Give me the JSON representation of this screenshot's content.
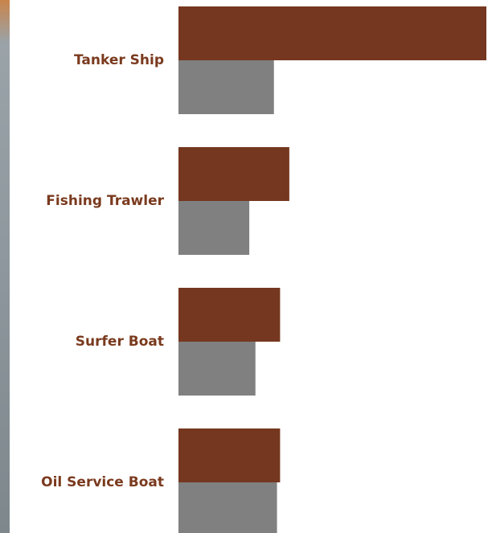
{
  "chart_data": {
    "type": "bar",
    "orientation": "horizontal",
    "categories": [
      "Tanker Ship",
      "Fishing Trawler",
      "Surfer Boat",
      "Oil Service Boat"
    ],
    "series": [
      {
        "color": "#75371f",
        "values": [
          100,
          36,
          33,
          33
        ]
      },
      {
        "color": "#808080",
        "values": [
          31,
          23,
          25,
          32
        ]
      }
    ],
    "xlim": [
      0,
      100
    ],
    "label_color": "#7a3a1e"
  }
}
